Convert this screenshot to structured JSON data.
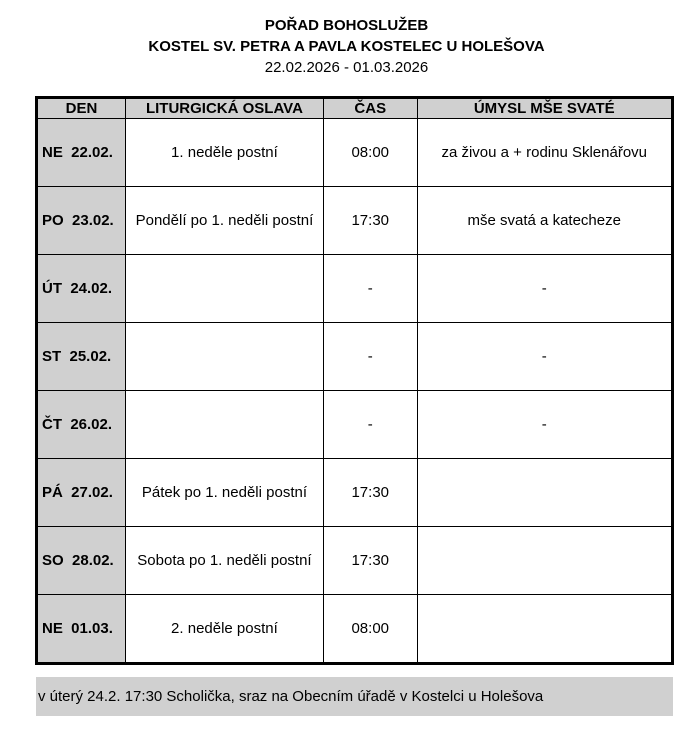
{
  "header": {
    "line1": "POŘAD BOHOSLUŽEB",
    "line2": "KOSTEL SV. PETRA A PAVLA KOSTELEC U HOLEŠOVA",
    "line3": "22.02.2026 - 01.03.2026"
  },
  "table": {
    "columns": [
      "DEN",
      "LITURGICKÁ OSLAVA",
      "ČAS",
      "ÚMYSL MŠE SVATÉ"
    ],
    "rows": [
      {
        "day": "NE  22.02.",
        "celebration": "1. neděle postní",
        "time": "08:00",
        "intention": "za živou a + rodinu Sklenářovu"
      },
      {
        "day": "PO  23.02.",
        "celebration": "Pondělí po 1. neděli postní",
        "time": "17:30",
        "intention": "mše svatá a katecheze"
      },
      {
        "day": "ÚT  24.02.",
        "celebration": "",
        "time": "-",
        "intention": "-"
      },
      {
        "day": "ST  25.02.",
        "celebration": "",
        "time": "-",
        "intention": "-"
      },
      {
        "day": "ČT  26.02.",
        "celebration": "",
        "time": "-",
        "intention": "-"
      },
      {
        "day": "PÁ  27.02.",
        "celebration": "Pátek po 1. neděli postní",
        "time": "17:30",
        "intention": ""
      },
      {
        "day": "SO  28.02.",
        "celebration": "Sobota po 1. neděli postní",
        "time": "17:30",
        "intention": ""
      },
      {
        "day": "NE  01.03.",
        "celebration": "2. neděle postní",
        "time": "08:00",
        "intention": ""
      }
    ]
  },
  "note": "v úterý 24.2. 17:30 Scholička, sraz na Obecním úřadě v Kostelci u Holešova"
}
